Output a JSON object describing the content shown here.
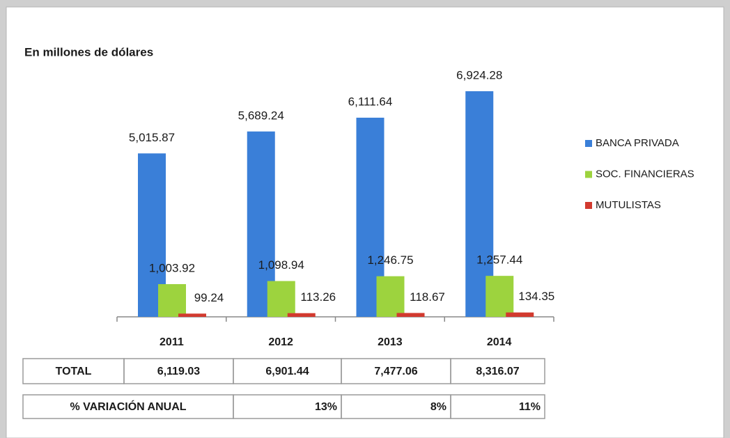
{
  "chart_data": {
    "type": "bar",
    "title": "En millones de dólares",
    "categories": [
      "2011",
      "2012",
      "2013",
      "2014"
    ],
    "series": [
      {
        "name": "BANCA PRIVADA",
        "color": "#3a7fd8",
        "values": [
          5015.87,
          5689.24,
          6111.64,
          6924.28
        ],
        "value_labels": [
          "5,015.87",
          "5,689.24",
          "6,111.64",
          "6,924.28"
        ]
      },
      {
        "name": "SOC. FINANCIERAS",
        "color": "#9dd33e",
        "values": [
          1003.92,
          1098.94,
          1246.75,
          1257.44
        ],
        "value_labels": [
          "1,003.92",
          "1,098.94",
          "1,246.75",
          "1,257.44"
        ]
      },
      {
        "name": "MUTULISTAS",
        "color": "#d23a2f",
        "values": [
          99.24,
          113.26,
          118.67,
          134.35
        ],
        "value_labels": [
          "99.24",
          "113.26",
          "118.67",
          "134.35"
        ]
      }
    ],
    "legend": "right"
  },
  "table": {
    "rows": [
      [
        "TOTAL",
        "6,119.03",
        "6,901.44",
        "7,477.06",
        "8,316.07"
      ],
      [
        "% VARIACIÓN ANUAL",
        "13%",
        "8%",
        "11%"
      ]
    ]
  }
}
